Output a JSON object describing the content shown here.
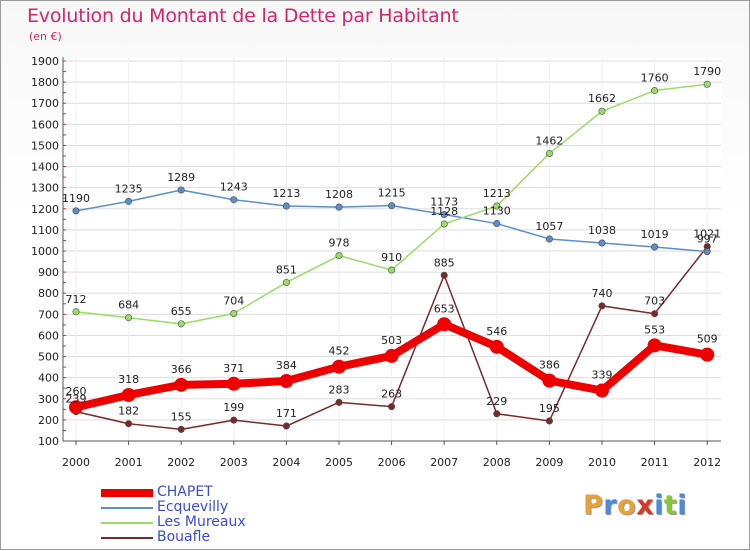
{
  "title": "Evolution du Montant de la Dette par Habitant",
  "unit": "(en €)",
  "logo": {
    "letters": [
      "P",
      "r",
      "o",
      "x",
      "i",
      "t",
      "i"
    ],
    "colors": [
      "#e8a23a",
      "#4a8ad8",
      "#e8a23a",
      "#d43a2a",
      "#4a8ad8",
      "#8ac43a",
      "#4a8ad8"
    ]
  },
  "chart_data": {
    "type": "line",
    "title": "Evolution du Montant de la Dette par Habitant",
    "ylabel": "(en €)",
    "xlabel": "",
    "x": [
      "2000",
      "2001",
      "2002",
      "2003",
      "2004",
      "2005",
      "2006",
      "2007",
      "2008",
      "2009",
      "2010",
      "2011",
      "2012"
    ],
    "ylim": [
      100,
      1900
    ],
    "yticks": [
      100,
      200,
      300,
      400,
      500,
      600,
      700,
      800,
      900,
      1000,
      1100,
      1200,
      1300,
      1400,
      1500,
      1600,
      1700,
      1800,
      1900
    ],
    "grid": true,
    "legend_position": "bottom-left",
    "series": [
      {
        "name": "CHAPET",
        "color": "#ee0000",
        "width": 8,
        "marker": 7,
        "values": [
          260,
          318,
          366,
          371,
          384,
          452,
          503,
          653,
          546,
          386,
          339,
          553,
          509
        ]
      },
      {
        "name": "Ecquevilly",
        "color": "#5a8fcc",
        "width": 1.5,
        "marker": 3.2,
        "values": [
          1190,
          1235,
          1289,
          1243,
          1213,
          1208,
          1215,
          1173,
          1130,
          1057,
          1038,
          1019,
          997
        ]
      },
      {
        "name": "Les Mureaux",
        "color": "#99dd66",
        "width": 1.5,
        "marker": 3.2,
        "values": [
          712,
          684,
          655,
          704,
          851,
          978,
          910,
          1128,
          1213,
          1462,
          1662,
          1760,
          1790
        ]
      },
      {
        "name": "Bouafle",
        "color": "#7a2a2a",
        "width": 1.5,
        "marker": 3.2,
        "values": [
          239,
          182,
          155,
          199,
          171,
          283,
          263,
          885,
          229,
          195,
          740,
          703,
          1021
        ]
      }
    ]
  }
}
